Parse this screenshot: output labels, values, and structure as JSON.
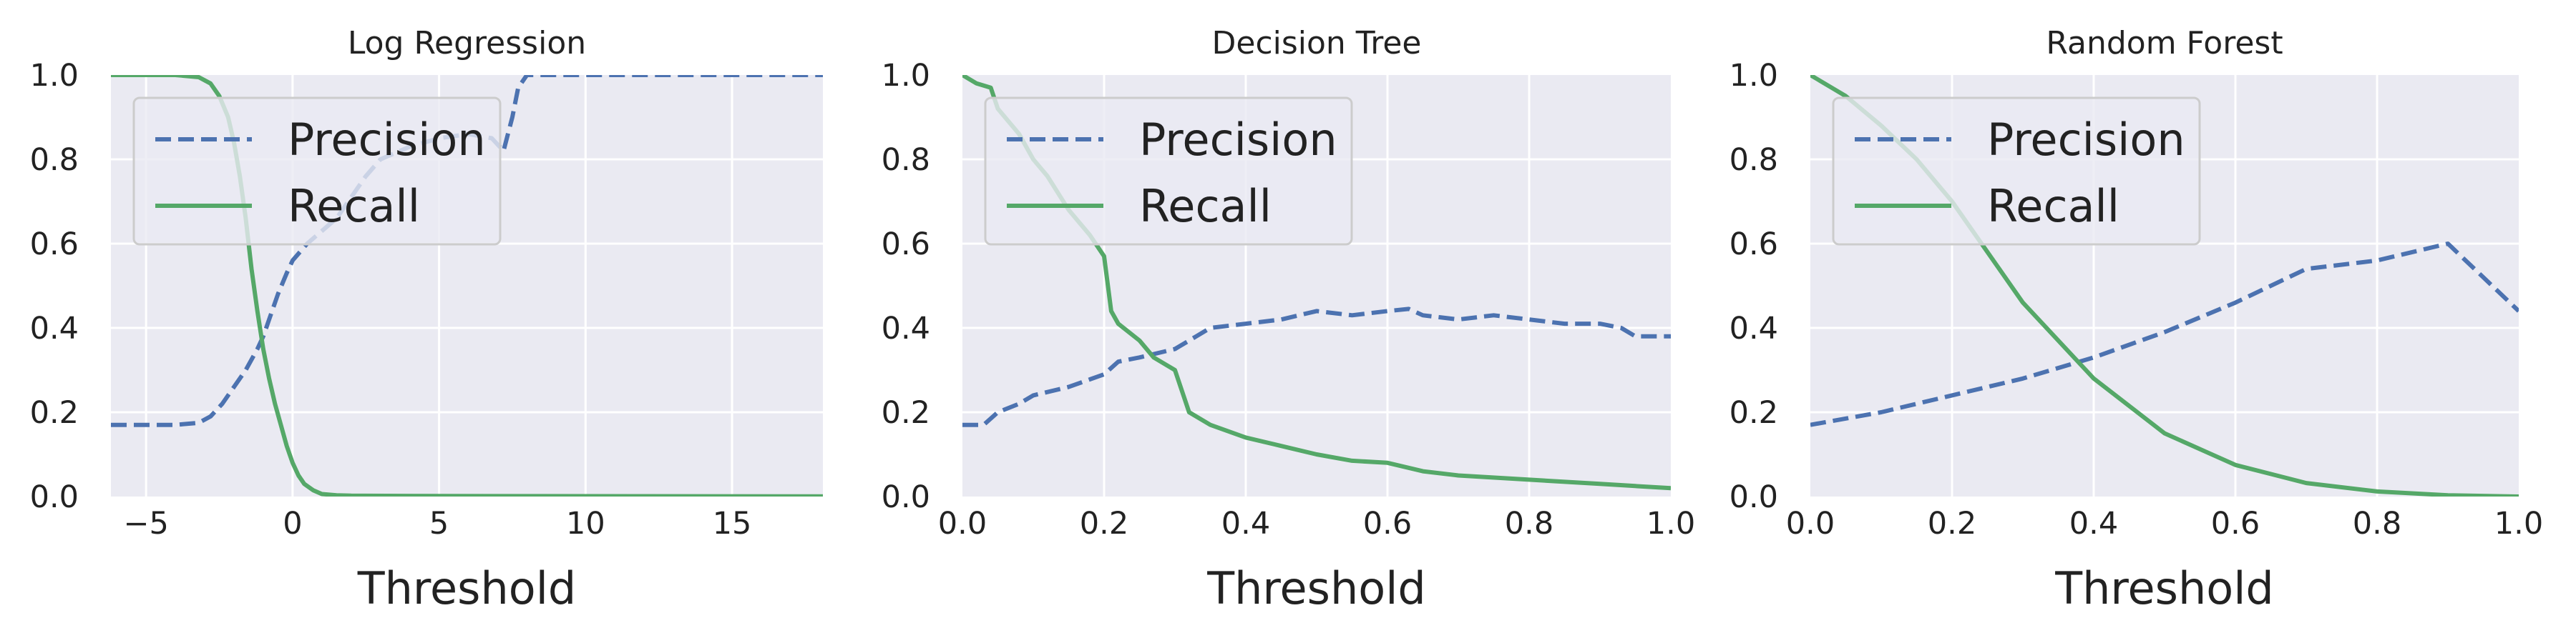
{
  "chart_data": [
    {
      "type": "line",
      "title": "Log Regression",
      "xlabel": "Threshold",
      "ylabel": "",
      "xlim": [
        -6.2,
        18.1
      ],
      "ylim": [
        0,
        1.0
      ],
      "xticks": [
        -5,
        0,
        5,
        10,
        15
      ],
      "xtick_labels": [
        "−5",
        "0",
        "5",
        "10",
        "15"
      ],
      "yticks": [
        0.0,
        0.2,
        0.4,
        0.6,
        0.8,
        1.0
      ],
      "ytick_labels": [
        "0.0",
        "0.2",
        "0.4",
        "0.6",
        "0.8",
        "1.0"
      ],
      "grid": true,
      "legend": "top-left",
      "series": [
        {
          "name": "Precision",
          "style": "dashed",
          "color": "#4c72b0",
          "x": [
            -6.2,
            -5,
            -4,
            -3.2,
            -2.8,
            -2.4,
            -2.0,
            -1.6,
            -1.2,
            -1.0,
            -0.8,
            -0.5,
            -0.2,
            0.0,
            0.5,
            1.0,
            1.5,
            2.0,
            2.5,
            3.0,
            4.0,
            5.0,
            6.0,
            6.8,
            7.2,
            7.5,
            7.7,
            8.0,
            10,
            12,
            15,
            18.1
          ],
          "y": [
            0.17,
            0.17,
            0.17,
            0.175,
            0.19,
            0.22,
            0.26,
            0.3,
            0.35,
            0.38,
            0.42,
            0.48,
            0.53,
            0.56,
            0.6,
            0.63,
            0.66,
            0.71,
            0.76,
            0.8,
            0.83,
            0.85,
            0.86,
            0.85,
            0.82,
            0.9,
            0.97,
            1.0,
            1.0,
            1.0,
            1.0,
            1.0
          ]
        },
        {
          "name": "Recall",
          "style": "solid",
          "color": "#55a868",
          "x": [
            -6.2,
            -5,
            -4,
            -3.2,
            -2.8,
            -2.5,
            -2.2,
            -2.0,
            -1.8,
            -1.6,
            -1.4,
            -1.2,
            -1.0,
            -0.8,
            -0.6,
            -0.4,
            -0.2,
            0.0,
            0.2,
            0.4,
            0.7,
            1.0,
            1.5,
            2.0,
            4.0,
            8.0,
            12,
            18.1
          ],
          "y": [
            1.0,
            1.0,
            1.0,
            0.995,
            0.98,
            0.95,
            0.9,
            0.84,
            0.76,
            0.66,
            0.54,
            0.44,
            0.35,
            0.28,
            0.22,
            0.17,
            0.12,
            0.08,
            0.05,
            0.03,
            0.015,
            0.006,
            0.003,
            0.002,
            0.0015,
            0.001,
            0.0008,
            0.0005
          ]
        }
      ]
    },
    {
      "type": "line",
      "title": "Decision Tree",
      "xlabel": "Threshold",
      "ylabel": "",
      "xlim": [
        0,
        1.0
      ],
      "ylim": [
        0,
        1.0
      ],
      "xticks": [
        0.0,
        0.2,
        0.4,
        0.6,
        0.8,
        1.0
      ],
      "xtick_labels": [
        "0.0",
        "0.2",
        "0.4",
        "0.6",
        "0.8",
        "1.0"
      ],
      "yticks": [
        0.0,
        0.2,
        0.4,
        0.6,
        0.8,
        1.0
      ],
      "ytick_labels": [
        "0.0",
        "0.2",
        "0.4",
        "0.6",
        "0.8",
        "1.0"
      ],
      "grid": true,
      "legend": "top-left",
      "series": [
        {
          "name": "Precision",
          "style": "dashed",
          "color": "#4c72b0",
          "x": [
            0.0,
            0.03,
            0.05,
            0.08,
            0.1,
            0.15,
            0.2,
            0.22,
            0.25,
            0.3,
            0.33,
            0.35,
            0.4,
            0.45,
            0.5,
            0.55,
            0.6,
            0.63,
            0.65,
            0.7,
            0.75,
            0.8,
            0.85,
            0.9,
            0.93,
            0.95,
            1.0
          ],
          "y": [
            0.17,
            0.17,
            0.2,
            0.22,
            0.24,
            0.26,
            0.29,
            0.32,
            0.33,
            0.35,
            0.38,
            0.4,
            0.41,
            0.42,
            0.44,
            0.43,
            0.44,
            0.445,
            0.43,
            0.42,
            0.43,
            0.42,
            0.41,
            0.41,
            0.4,
            0.38,
            0.38
          ]
        },
        {
          "name": "Recall",
          "style": "solid",
          "color": "#55a868",
          "x": [
            0.0,
            0.02,
            0.04,
            0.05,
            0.08,
            0.1,
            0.12,
            0.15,
            0.18,
            0.2,
            0.21,
            0.22,
            0.25,
            0.27,
            0.3,
            0.31,
            0.32,
            0.35,
            0.4,
            0.45,
            0.5,
            0.55,
            0.6,
            0.65,
            0.7,
            0.8,
            0.9,
            0.95,
            1.0
          ],
          "y": [
            1.0,
            0.98,
            0.97,
            0.92,
            0.86,
            0.8,
            0.76,
            0.68,
            0.62,
            0.57,
            0.44,
            0.41,
            0.37,
            0.33,
            0.3,
            0.25,
            0.2,
            0.17,
            0.14,
            0.12,
            0.1,
            0.085,
            0.08,
            0.06,
            0.05,
            0.04,
            0.03,
            0.025,
            0.02
          ]
        }
      ]
    },
    {
      "type": "line",
      "title": "Random Forest",
      "xlabel": "Threshold",
      "ylabel": "",
      "xlim": [
        0,
        1.0
      ],
      "ylim": [
        0,
        1.0
      ],
      "xticks": [
        0.0,
        0.2,
        0.4,
        0.6,
        0.8,
        1.0
      ],
      "xtick_labels": [
        "0.0",
        "0.2",
        "0.4",
        "0.6",
        "0.8",
        "1.0"
      ],
      "yticks": [
        0.0,
        0.2,
        0.4,
        0.6,
        0.8,
        1.0
      ],
      "ytick_labels": [
        "0.0",
        "0.2",
        "0.4",
        "0.6",
        "0.8",
        "1.0"
      ],
      "grid": true,
      "legend": "top-left",
      "series": [
        {
          "name": "Precision",
          "style": "dashed",
          "color": "#4c72b0",
          "x": [
            0.0,
            0.1,
            0.2,
            0.3,
            0.4,
            0.5,
            0.6,
            0.7,
            0.8,
            0.9,
            1.0
          ],
          "y": [
            0.17,
            0.2,
            0.24,
            0.28,
            0.33,
            0.39,
            0.46,
            0.54,
            0.56,
            0.6,
            0.44
          ]
        },
        {
          "name": "Recall",
          "style": "solid",
          "color": "#55a868",
          "x": [
            0.0,
            0.05,
            0.1,
            0.15,
            0.2,
            0.3,
            0.4,
            0.5,
            0.6,
            0.7,
            0.8,
            0.9,
            1.0
          ],
          "y": [
            1.0,
            0.95,
            0.88,
            0.8,
            0.7,
            0.46,
            0.28,
            0.15,
            0.075,
            0.032,
            0.012,
            0.003,
            0.0
          ]
        }
      ]
    }
  ],
  "style": {
    "plot_background": "#eaeaf2",
    "grid_color": "#ffffff",
    "legend_background": "#eaeaf2",
    "legend_border": "#cccccc"
  }
}
